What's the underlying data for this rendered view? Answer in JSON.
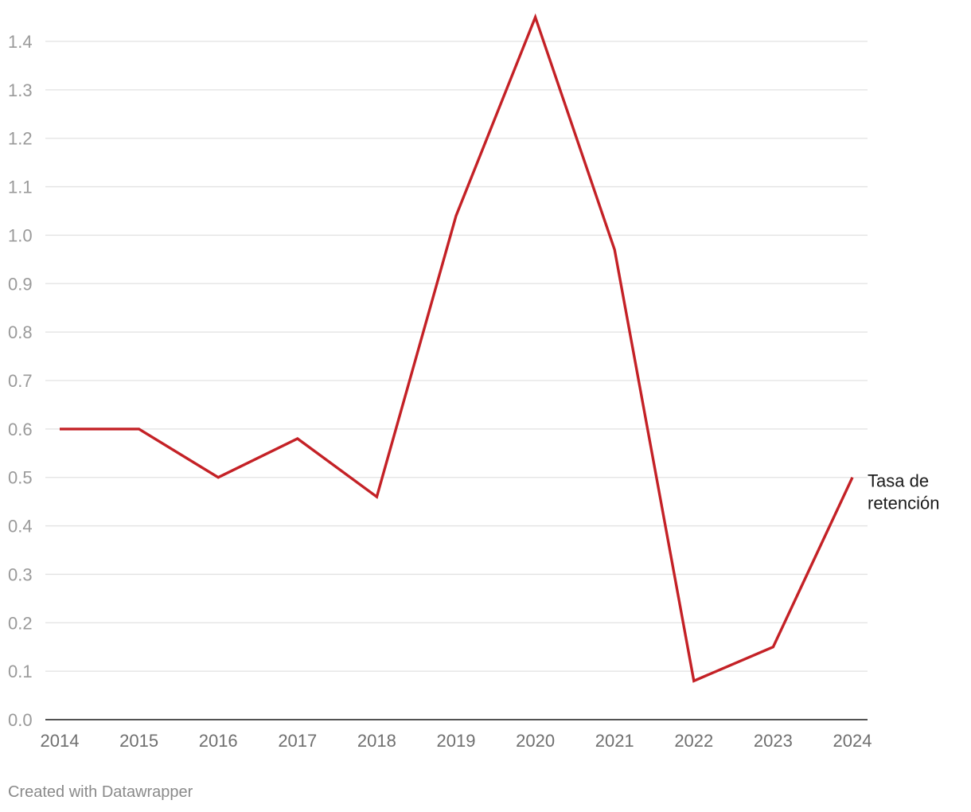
{
  "chart_data": {
    "type": "line",
    "x": [
      "2014",
      "2015",
      "2016",
      "2017",
      "2018",
      "2019",
      "2020",
      "2021",
      "2022",
      "2023",
      "2024"
    ],
    "series": [
      {
        "name": "Tasa de retención",
        "label_lines": [
          "Tasa de",
          "retención"
        ],
        "color": "#c42126",
        "values": [
          0.6,
          0.6,
          0.5,
          0.58,
          0.46,
          1.04,
          1.45,
          0.97,
          0.08,
          0.15,
          0.5
        ]
      }
    ],
    "ylim": [
      0,
      1.4
    ],
    "yticks": [
      "0.0",
      "0.1",
      "0.2",
      "0.3",
      "0.4",
      "0.5",
      "0.6",
      "0.7",
      "0.8",
      "0.9",
      "1.0",
      "1.1",
      "1.2",
      "1.3",
      "1.4"
    ],
    "grid": true,
    "legend": "direct label at line end"
  },
  "footer": {
    "credit": "Created with Datawrapper"
  }
}
